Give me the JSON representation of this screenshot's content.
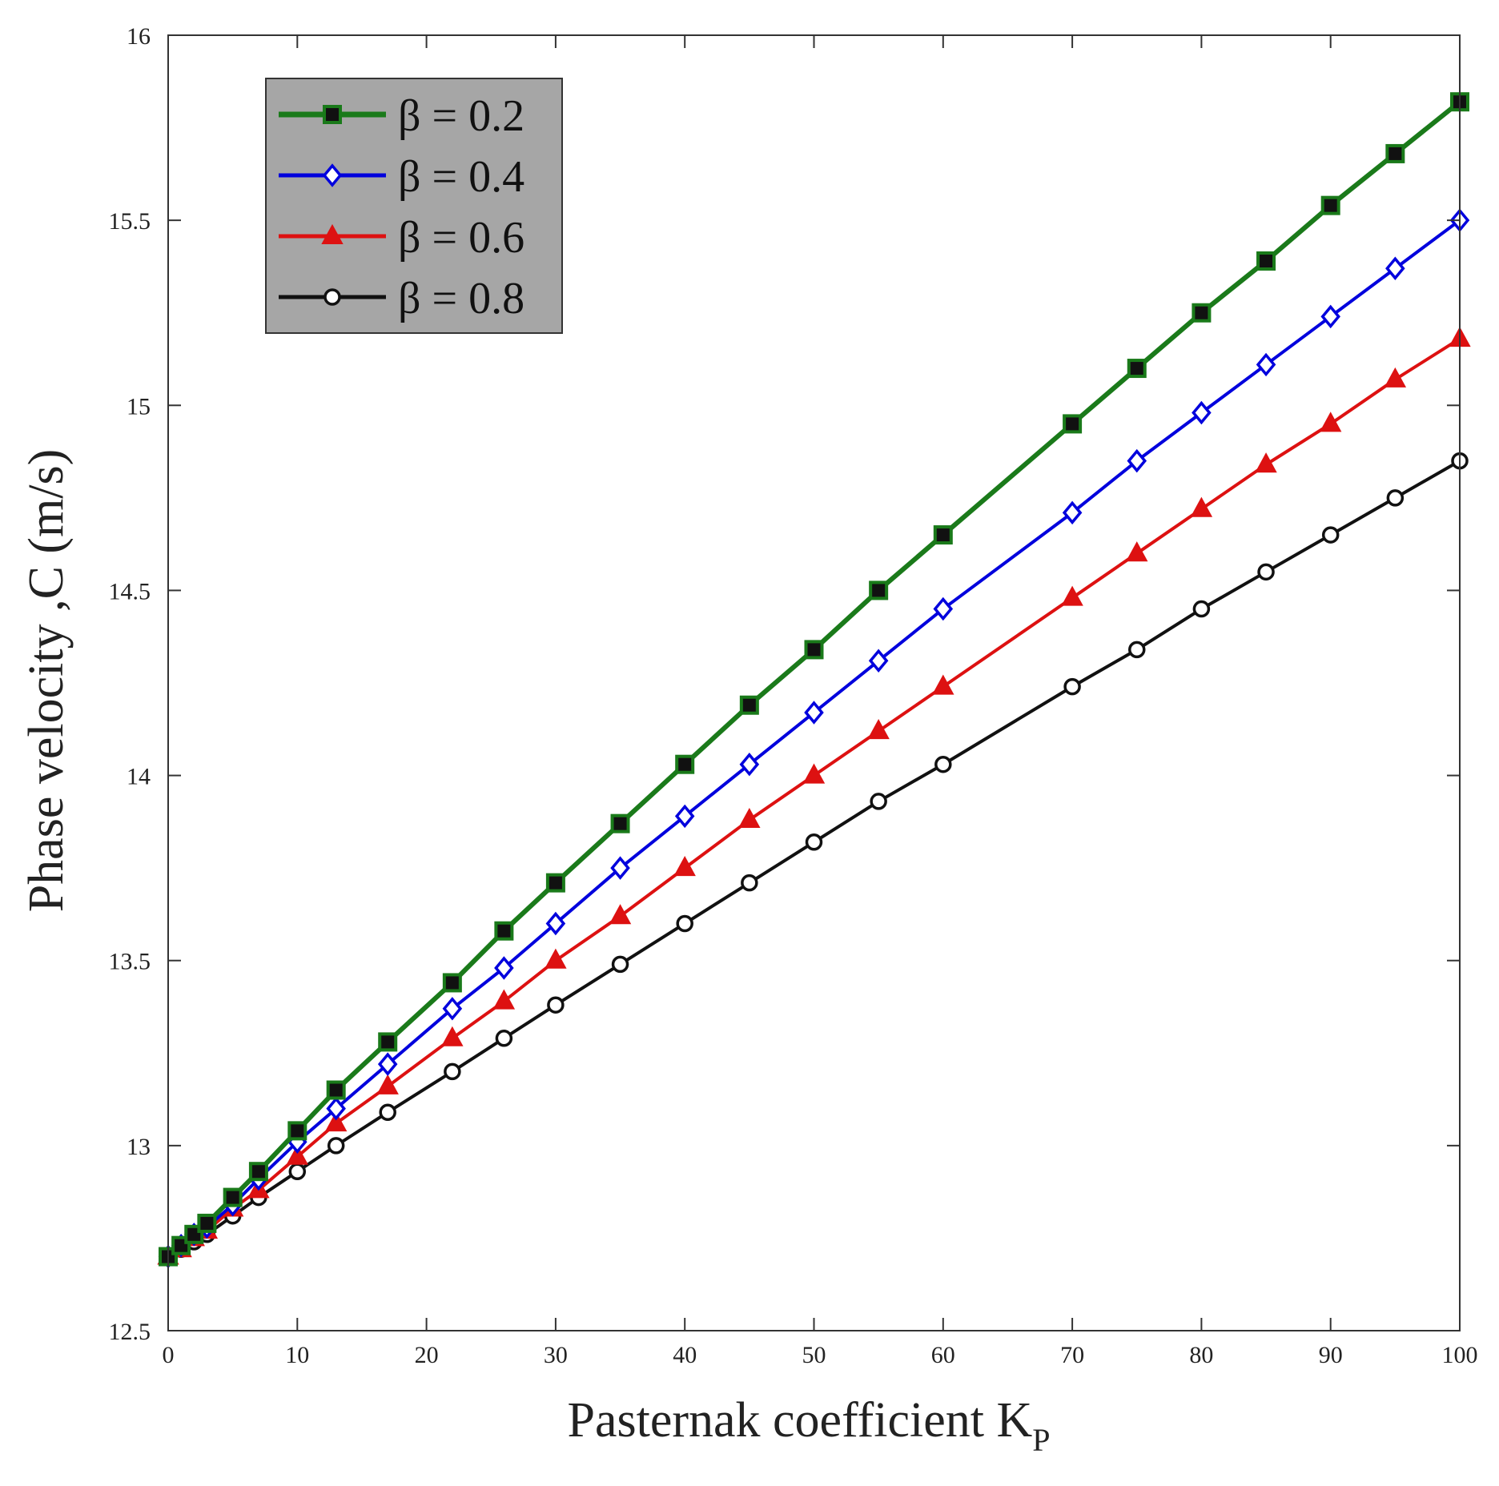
{
  "chart_data": {
    "type": "line",
    "title": "",
    "xlabel": "Pasternak coefficient K",
    "xlabel_sub": "P",
    "ylabel": "Phase velocity ,C (m/s)",
    "xlim": [
      0,
      100
    ],
    "ylim": [
      12.5,
      16
    ],
    "xticks": [
      "0",
      "10",
      "20",
      "30",
      "40",
      "50",
      "60",
      "70",
      "80",
      "90",
      "100"
    ],
    "yticks": [
      "12.5",
      "13",
      "13.5",
      "14",
      "14.5",
      "15",
      "15.5",
      "16"
    ],
    "grid": false,
    "legend_position": "top-left",
    "legend_background": "#a6a6a6",
    "x": [
      0,
      1,
      2,
      3,
      5,
      7,
      10,
      13,
      17,
      22,
      26,
      30,
      35,
      40,
      45,
      50,
      55,
      60,
      70,
      75,
      80,
      85,
      90,
      95,
      100
    ],
    "series": [
      {
        "name": "β = 0.2",
        "color": "#1a7a1a",
        "marker": "square",
        "values": [
          12.7,
          12.73,
          12.76,
          12.79,
          12.86,
          12.93,
          13.04,
          13.15,
          13.28,
          13.44,
          13.58,
          13.71,
          13.87,
          14.03,
          14.19,
          14.34,
          14.5,
          14.65,
          14.95,
          15.1,
          15.25,
          15.39,
          15.54,
          15.68,
          15.82
        ]
      },
      {
        "name": "β = 0.4",
        "color": "#0000dd",
        "marker": "diamond",
        "values": [
          12.7,
          12.73,
          12.76,
          12.78,
          12.84,
          12.91,
          13.01,
          13.1,
          13.22,
          13.37,
          13.48,
          13.6,
          13.75,
          13.89,
          14.03,
          14.17,
          14.31,
          14.45,
          14.71,
          14.85,
          14.98,
          15.11,
          15.24,
          15.37,
          15.5
        ]
      },
      {
        "name": "β = 0.6",
        "color": "#dd1111",
        "marker": "triangle",
        "values": [
          12.7,
          12.72,
          12.75,
          12.77,
          12.83,
          12.88,
          12.97,
          13.06,
          13.16,
          13.29,
          13.39,
          13.5,
          13.62,
          13.75,
          13.88,
          14.0,
          14.12,
          14.24,
          14.48,
          14.6,
          14.72,
          14.84,
          14.95,
          15.07,
          15.18
        ]
      },
      {
        "name": "β = 0.8",
        "color": "#111111",
        "marker": "circle",
        "values": [
          12.7,
          12.72,
          12.74,
          12.76,
          12.81,
          12.86,
          12.93,
          13.0,
          13.09,
          13.2,
          13.29,
          13.38,
          13.49,
          13.6,
          13.71,
          13.82,
          13.93,
          14.03,
          14.24,
          14.34,
          14.45,
          14.55,
          14.65,
          14.75,
          14.85
        ]
      }
    ]
  }
}
